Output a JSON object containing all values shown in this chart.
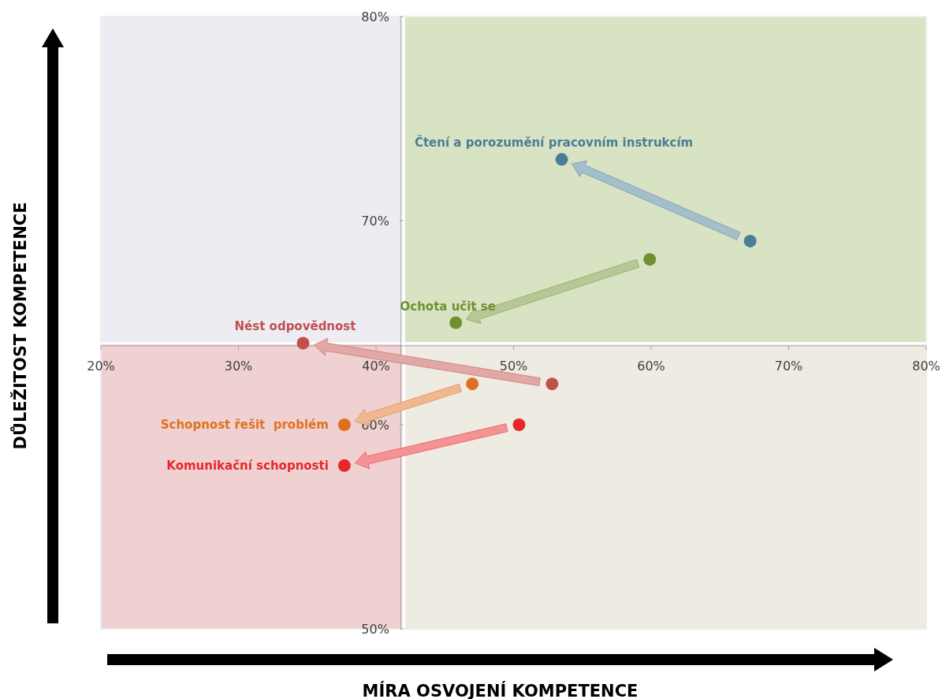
{
  "chart_data": {
    "type": "scatter",
    "xlabel": "MÍRA OSVOJENÍ KOMPETENCE",
    "ylabel": "DŮLEŽITOST KOMPETENCE",
    "xlim": [
      20,
      80
    ],
    "xticks": [
      {
        "value": 20,
        "label": "20%"
      },
      {
        "value": 30,
        "label": "30%"
      },
      {
        "value": 40,
        "label": "40%"
      },
      {
        "value": 50,
        "label": "50%"
      },
      {
        "value": 60,
        "label": "60%"
      },
      {
        "value": 70,
        "label": "70%"
      },
      {
        "value": 80,
        "label": "80%"
      }
    ],
    "ylim": [
      50,
      80
    ],
    "yticks": [
      {
        "value": 50,
        "label": "50%"
      },
      {
        "value": 60,
        "label": "60%"
      },
      {
        "value": 70,
        "label": "70%"
      },
      {
        "value": 80,
        "label": "80%"
      }
    ],
    "ref_lines": [
      {
        "axis": "x",
        "value": 42,
        "color": "#ffffff"
      },
      {
        "axis": "y",
        "value": 64,
        "color": "#ffffff"
      }
    ],
    "marker": "circle",
    "series": [
      {
        "name": "Čtení a porozumění pracovním instrukcím",
        "color": "#4a7d96",
        "x": [
          67.2,
          53.5
        ],
        "values": [
          69.0,
          73.0
        ]
      },
      {
        "name": "Ochota učit se",
        "color": "#6f912f",
        "x": [
          59.9,
          45.8
        ],
        "values": [
          68.1,
          65.0
        ]
      },
      {
        "name": "Nést odpovědnost",
        "color": "#c0504d",
        "x": [
          52.8,
          34.7
        ],
        "values": [
          62.0,
          64.0
        ]
      },
      {
        "name": "Schopnost řešit  problém",
        "color": "#e07020",
        "x": [
          47.0,
          37.7
        ],
        "values": [
          62.0,
          60.0
        ]
      },
      {
        "name": "Komunikační schopnosti",
        "color": "#e8262a",
        "x": [
          50.4,
          37.7
        ],
        "values": [
          60.0,
          58.0
        ]
      }
    ]
  }
}
